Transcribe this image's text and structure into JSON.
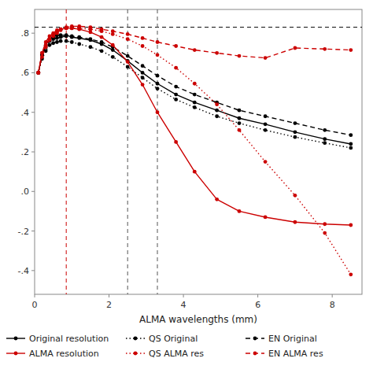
{
  "chart_data": {
    "type": "line",
    "xlabel": "ALMA wavelengths (mm)",
    "xlim": [
      0,
      8.8
    ],
    "ylim": [
      -0.52,
      0.92
    ],
    "xticks": [
      0,
      2,
      4,
      6,
      8
    ],
    "yticks": [
      {
        "value": 0.8,
        "label": ".8"
      },
      {
        "value": 0.6,
        "label": ".6"
      },
      {
        "value": 0.4,
        "label": ".4"
      },
      {
        "value": 0.2,
        "label": ".2"
      },
      {
        "value": 0.0,
        "label": ".0"
      },
      {
        "value": -0.2,
        "label": "-.2"
      },
      {
        "value": -0.4,
        "label": "-.4"
      }
    ],
    "grid": false,
    "legend": "lower left",
    "x": [
      0.1,
      0.2,
      0.3,
      0.4,
      0.5,
      0.6,
      0.7,
      0.85,
      1.0,
      1.2,
      1.5,
      1.8,
      2.1,
      2.5,
      2.9,
      3.3,
      3.8,
      4.3,
      4.9,
      5.5,
      6.2,
      7.0,
      7.8,
      8.5
    ],
    "series": [
      {
        "name": "Original resolution",
        "color": "#000000",
        "line_style": "solid",
        "marker": "circle",
        "values": [
          0.6,
          0.69,
          0.74,
          0.77,
          0.78,
          0.79,
          0.79,
          0.79,
          0.78,
          0.775,
          0.765,
          0.745,
          0.715,
          0.66,
          0.6,
          0.545,
          0.49,
          0.45,
          0.41,
          0.37,
          0.34,
          0.3,
          0.265,
          0.24
        ]
      },
      {
        "name": "QS Original",
        "color": "#000000",
        "line_style": "dotted",
        "marker": "circle",
        "values": [
          0.6,
          0.67,
          0.71,
          0.74,
          0.75,
          0.755,
          0.76,
          0.76,
          0.755,
          0.745,
          0.73,
          0.71,
          0.68,
          0.63,
          0.575,
          0.52,
          0.465,
          0.425,
          0.38,
          0.345,
          0.31,
          0.275,
          0.245,
          0.22
        ]
      },
      {
        "name": "EN Original",
        "color": "#000000",
        "line_style": "dashed",
        "marker": "circle",
        "values": [
          0.6,
          0.69,
          0.73,
          0.76,
          0.77,
          0.775,
          0.78,
          0.785,
          0.785,
          0.78,
          0.77,
          0.755,
          0.73,
          0.685,
          0.635,
          0.585,
          0.53,
          0.49,
          0.45,
          0.41,
          0.38,
          0.345,
          0.31,
          0.285
        ]
      },
      {
        "name": "ALMA resolution",
        "color": "#cc0000",
        "line_style": "solid",
        "marker": "circle",
        "values": [
          0.6,
          0.7,
          0.755,
          0.785,
          0.8,
          0.815,
          0.82,
          0.825,
          0.825,
          0.82,
          0.805,
          0.78,
          0.74,
          0.655,
          0.54,
          0.4,
          0.25,
          0.1,
          -0.04,
          -0.1,
          -0.13,
          -0.155,
          -0.165,
          -0.17
        ]
      },
      {
        "name": "QS ALMA res",
        "color": "#cc0000",
        "line_style": "dotted",
        "marker": "circle",
        "values": [
          0.6,
          0.68,
          0.73,
          0.765,
          0.785,
          0.8,
          0.82,
          0.825,
          0.825,
          0.825,
          0.82,
          0.81,
          0.795,
          0.77,
          0.735,
          0.69,
          0.625,
          0.545,
          0.44,
          0.31,
          0.15,
          -0.02,
          -0.21,
          -0.42
        ]
      },
      {
        "name": "EN ALMA res",
        "color": "#cc0000",
        "line_style": "dashed",
        "marker": "circle",
        "values": [
          0.6,
          0.7,
          0.74,
          0.77,
          0.79,
          0.805,
          0.815,
          0.83,
          0.835,
          0.835,
          0.83,
          0.82,
          0.81,
          0.795,
          0.775,
          0.755,
          0.735,
          0.715,
          0.7,
          0.685,
          0.675,
          0.725,
          0.72,
          0.715
        ]
      }
    ],
    "hlines": [
      {
        "value": 0.83,
        "color": "#000000"
      }
    ],
    "vlines": [
      {
        "value": 2.5,
        "color": "#555555"
      },
      {
        "value": 3.3,
        "color": "#555555"
      },
      {
        "value": 0.85,
        "color": "#cc0000"
      }
    ]
  }
}
